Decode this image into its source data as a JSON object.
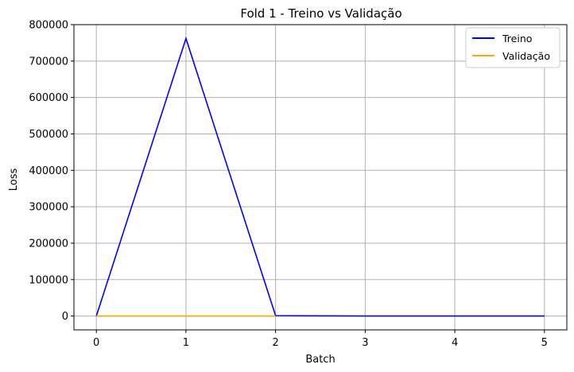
{
  "chart_data": {
    "type": "line",
    "title": "Fold 1 - Treino vs Validação",
    "xlabel": "Batch",
    "ylabel": "Loss",
    "x": [
      0,
      1,
      2,
      3,
      4,
      5
    ],
    "xlim": [
      -0.25,
      5.25
    ],
    "ylim": [
      -38000,
      800000
    ],
    "xticks": [
      0,
      1,
      2,
      3,
      4,
      5
    ],
    "yticks": [
      0,
      100000,
      200000,
      300000,
      400000,
      500000,
      600000,
      700000,
      800000
    ],
    "grid": true,
    "legend_position": "top-right",
    "series": [
      {
        "name": "Treino",
        "color": "#0000ff",
        "x": [
          0,
          1,
          2,
          3,
          4,
          5
        ],
        "values": [
          0,
          762000,
          1000,
          0,
          0,
          0
        ]
      },
      {
        "name": "Validação",
        "color": "#ffa500",
        "x": [
          0,
          1,
          2
        ],
        "values": [
          0,
          0,
          0
        ]
      }
    ]
  }
}
